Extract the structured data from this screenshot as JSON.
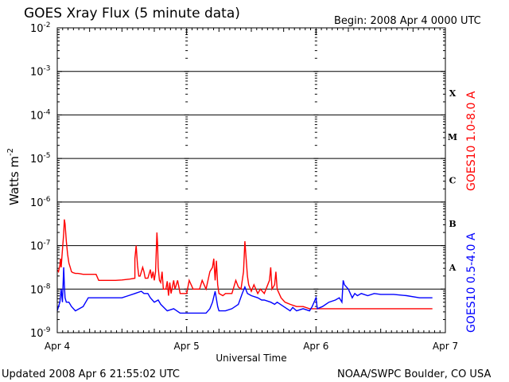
{
  "chart_data": {
    "type": "line",
    "title": "GOES Xray Flux (5 minute data)",
    "begin_label": "Begin:  2008 Apr 4 0000 UTC",
    "xlabel": "Universal Time",
    "ylabel": "Watts m",
    "ylabel_exponent": "-2",
    "y_scale": "log",
    "ylim_exponents": [
      -9,
      -2
    ],
    "xlim": [
      0,
      3
    ],
    "grid": "horizontal",
    "x_ticks": [
      {
        "value": 0,
        "label": "Apr 4"
      },
      {
        "value": 1,
        "label": "Apr 5"
      },
      {
        "value": 2,
        "label": "Apr 6"
      },
      {
        "value": 3,
        "label": "Apr 7"
      }
    ],
    "y_ticks": [
      {
        "exp": -2,
        "base": "10",
        "sup": "-2"
      },
      {
        "exp": -3,
        "base": "10",
        "sup": "-3"
      },
      {
        "exp": -4,
        "base": "10",
        "sup": "-4"
      },
      {
        "exp": -5,
        "base": "10",
        "sup": "-5"
      },
      {
        "exp": -6,
        "base": "10",
        "sup": "-6"
      },
      {
        "exp": -7,
        "base": "10",
        "sup": "-7"
      },
      {
        "exp": -8,
        "base": "10",
        "sup": "-8"
      },
      {
        "exp": -9,
        "base": "10",
        "sup": "-9"
      }
    ],
    "flare_classes": [
      {
        "label": "X",
        "exp": -3.5
      },
      {
        "label": "M",
        "exp": -4.5
      },
      {
        "label": "C",
        "exp": -5.5
      },
      {
        "label": "B",
        "exp": -6.5
      },
      {
        "label": "A",
        "exp": -7.5
      }
    ],
    "series": [
      {
        "name": "GOES10 1.0-8.0 A",
        "color": "#ff0000",
        "points": [
          [
            0.0,
            -7.56
          ],
          [
            0.01,
            -7.6
          ],
          [
            0.02,
            -7.45
          ],
          [
            0.025,
            -7.3
          ],
          [
            0.03,
            -7.5
          ],
          [
            0.04,
            -7.1
          ],
          [
            0.05,
            -6.72
          ],
          [
            0.055,
            -6.4
          ],
          [
            0.06,
            -6.5
          ],
          [
            0.07,
            -6.9
          ],
          [
            0.08,
            -7.2
          ],
          [
            0.09,
            -7.4
          ],
          [
            0.1,
            -7.5
          ],
          [
            0.11,
            -7.6
          ],
          [
            0.12,
            -7.62
          ],
          [
            0.14,
            -7.64
          ],
          [
            0.16,
            -7.64
          ],
          [
            0.18,
            -7.65
          ],
          [
            0.2,
            -7.66
          ],
          [
            0.3,
            -7.66
          ],
          [
            0.32,
            -7.8
          ],
          [
            0.45,
            -7.8
          ],
          [
            0.5,
            -7.79
          ],
          [
            0.56,
            -7.77
          ],
          [
            0.6,
            -7.75
          ],
          [
            0.6,
            -7.3
          ],
          [
            0.61,
            -7.0
          ],
          [
            0.62,
            -7.45
          ],
          [
            0.63,
            -7.7
          ],
          [
            0.64,
            -7.7
          ],
          [
            0.66,
            -7.5
          ],
          [
            0.67,
            -7.6
          ],
          [
            0.68,
            -7.75
          ],
          [
            0.7,
            -7.75
          ],
          [
            0.72,
            -7.55
          ],
          [
            0.73,
            -7.75
          ],
          [
            0.74,
            -7.6
          ],
          [
            0.75,
            -7.8
          ],
          [
            0.76,
            -7.6
          ],
          [
            0.77,
            -6.7
          ],
          [
            0.775,
            -6.95
          ],
          [
            0.78,
            -7.5
          ],
          [
            0.79,
            -7.8
          ],
          [
            0.8,
            -7.85
          ],
          [
            0.81,
            -7.6
          ],
          [
            0.82,
            -8.0
          ],
          [
            0.84,
            -8.0
          ],
          [
            0.85,
            -7.82
          ],
          [
            0.86,
            -8.15
          ],
          [
            0.87,
            -7.85
          ],
          [
            0.88,
            -8.1
          ],
          [
            0.9,
            -7.8
          ],
          [
            0.91,
            -8.0
          ],
          [
            0.93,
            -7.8
          ],
          [
            0.95,
            -8.1
          ],
          [
            1.0,
            -8.1
          ],
          [
            1.02,
            -7.8
          ],
          [
            1.05,
            -8.0
          ],
          [
            1.1,
            -8.0
          ],
          [
            1.12,
            -7.8
          ],
          [
            1.15,
            -8.0
          ],
          [
            1.18,
            -7.6
          ],
          [
            1.2,
            -7.5
          ],
          [
            1.21,
            -7.3
          ],
          [
            1.22,
            -7.8
          ],
          [
            1.23,
            -7.35
          ],
          [
            1.24,
            -7.9
          ],
          [
            1.25,
            -8.1
          ],
          [
            1.28,
            -8.15
          ],
          [
            1.3,
            -8.1
          ],
          [
            1.35,
            -8.1
          ],
          [
            1.38,
            -7.8
          ],
          [
            1.4,
            -7.95
          ],
          [
            1.42,
            -8.0
          ],
          [
            1.44,
            -7.6
          ],
          [
            1.45,
            -6.9
          ],
          [
            1.46,
            -7.3
          ],
          [
            1.47,
            -7.7
          ],
          [
            1.48,
            -7.9
          ],
          [
            1.5,
            -8.05
          ],
          [
            1.52,
            -7.9
          ],
          [
            1.55,
            -8.1
          ],
          [
            1.57,
            -8.0
          ],
          [
            1.6,
            -8.1
          ],
          [
            1.64,
            -7.8
          ],
          [
            1.65,
            -7.5
          ],
          [
            1.66,
            -8.0
          ],
          [
            1.68,
            -7.9
          ],
          [
            1.69,
            -7.6
          ],
          [
            1.7,
            -8.0
          ],
          [
            1.73,
            -8.2
          ],
          [
            1.76,
            -8.3
          ],
          [
            1.8,
            -8.35
          ],
          [
            1.85,
            -8.4
          ],
          [
            1.9,
            -8.4
          ],
          [
            1.95,
            -8.45
          ],
          [
            2.0,
            -8.45
          ],
          [
            2.9,
            -8.45
          ]
        ]
      },
      {
        "name": "GOES10 0.5-4.0 A",
        "color": "#0000ff",
        "points": [
          [
            0.0,
            -8.5
          ],
          [
            0.01,
            -8.4
          ],
          [
            0.02,
            -8.3
          ],
          [
            0.03,
            -8.0
          ],
          [
            0.04,
            -8.3
          ],
          [
            0.05,
            -7.5
          ],
          [
            0.055,
            -7.9
          ],
          [
            0.06,
            -8.2
          ],
          [
            0.07,
            -8.3
          ],
          [
            0.09,
            -8.3
          ],
          [
            0.11,
            -8.4
          ],
          [
            0.14,
            -8.5
          ],
          [
            0.17,
            -8.45
          ],
          [
            0.2,
            -8.4
          ],
          [
            0.24,
            -8.2
          ],
          [
            0.3,
            -8.2
          ],
          [
            0.4,
            -8.2
          ],
          [
            0.5,
            -8.2
          ],
          [
            0.55,
            -8.15
          ],
          [
            0.6,
            -8.1
          ],
          [
            0.65,
            -8.05
          ],
          [
            0.67,
            -8.1
          ],
          [
            0.7,
            -8.1
          ],
          [
            0.72,
            -8.2
          ],
          [
            0.75,
            -8.3
          ],
          [
            0.78,
            -8.25
          ],
          [
            0.8,
            -8.35
          ],
          [
            0.85,
            -8.5
          ],
          [
            0.9,
            -8.45
          ],
          [
            0.95,
            -8.55
          ],
          [
            1.0,
            -8.55
          ],
          [
            1.1,
            -8.55
          ],
          [
            1.15,
            -8.55
          ],
          [
            1.18,
            -8.45
          ],
          [
            1.2,
            -8.3
          ],
          [
            1.22,
            -8.05
          ],
          [
            1.24,
            -8.4
          ],
          [
            1.25,
            -8.5
          ],
          [
            1.3,
            -8.5
          ],
          [
            1.35,
            -8.45
          ],
          [
            1.4,
            -8.35
          ],
          [
            1.43,
            -8.1
          ],
          [
            1.45,
            -7.95
          ],
          [
            1.47,
            -8.1
          ],
          [
            1.5,
            -8.15
          ],
          [
            1.55,
            -8.2
          ],
          [
            1.58,
            -8.25
          ],
          [
            1.6,
            -8.25
          ],
          [
            1.65,
            -8.3
          ],
          [
            1.68,
            -8.35
          ],
          [
            1.7,
            -8.3
          ],
          [
            1.75,
            -8.4
          ],
          [
            1.8,
            -8.5
          ],
          [
            1.82,
            -8.42
          ],
          [
            1.85,
            -8.5
          ],
          [
            1.9,
            -8.45
          ],
          [
            1.95,
            -8.5
          ],
          [
            1.97,
            -8.4
          ],
          [
            2.0,
            -8.2
          ],
          [
            2.01,
            -8.45
          ],
          [
            2.05,
            -8.4
          ],
          [
            2.1,
            -8.3
          ],
          [
            2.15,
            -8.25
          ],
          [
            2.18,
            -8.2
          ],
          [
            2.2,
            -8.3
          ],
          [
            2.21,
            -7.8
          ],
          [
            2.22,
            -7.9
          ],
          [
            2.25,
            -8.0
          ],
          [
            2.28,
            -8.2
          ],
          [
            2.3,
            -8.1
          ],
          [
            2.32,
            -8.15
          ],
          [
            2.35,
            -8.1
          ],
          [
            2.4,
            -8.15
          ],
          [
            2.45,
            -8.1
          ],
          [
            2.5,
            -8.12
          ],
          [
            2.6,
            -8.12
          ],
          [
            2.7,
            -8.15
          ],
          [
            2.8,
            -8.2
          ],
          [
            2.9,
            -8.2
          ]
        ]
      }
    ]
  },
  "footer": {
    "updated": "Updated 2008 Apr  6 21:55:02 UTC",
    "credit": "NOAA/SWPC Boulder, CO USA"
  }
}
